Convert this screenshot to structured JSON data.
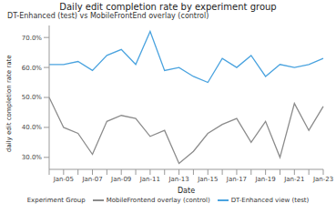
{
  "chart_data": {
    "type": "line",
    "title": "Daily edit completion rate by experiment group",
    "subtitle": "DT-Enhanced (test) vs MobileFrontEnd overlay (control)",
    "x_label": "Date",
    "y_label": "daily edit completion rate rate",
    "legend_title": "Experiment Group",
    "legend": "bottom",
    "grid": false,
    "categories": [
      null,
      "Jan-05",
      null,
      "Jan-07",
      null,
      "Jan-09",
      null,
      "Jan-11",
      null,
      "Jan-13",
      null,
      "Jan-15",
      null,
      "Jan-17",
      null,
      "Jan-19",
      null,
      "Jan-21",
      null,
      "Jan-23"
    ],
    "series": [
      {
        "name": "MobileFrontend overlay (control)",
        "color": "#8c8c8c",
        "values": [
          50,
          40,
          38,
          31,
          42,
          44,
          43,
          37,
          39,
          28,
          32,
          38,
          41,
          43,
          35,
          42,
          30,
          48,
          39,
          47
        ]
      },
      {
        "name": "DT-Enhanced view (test)",
        "color": "#4aa3df",
        "values": [
          61,
          61,
          62,
          59,
          64,
          66,
          61,
          72,
          59,
          60,
          57,
          55,
          63,
          60,
          64,
          57,
          61,
          60,
          61,
          63
        ]
      }
    ],
    "ylim": [
      26,
      74
    ],
    "yticks": [
      {
        "value": 30,
        "label": "30.0%"
      },
      {
        "value": 40,
        "label": "40.0%"
      },
      {
        "value": 50,
        "label": "50.0%"
      },
      {
        "value": 60,
        "label": "60.0%"
      },
      {
        "value": 70,
        "label": "70.0%"
      }
    ]
  }
}
